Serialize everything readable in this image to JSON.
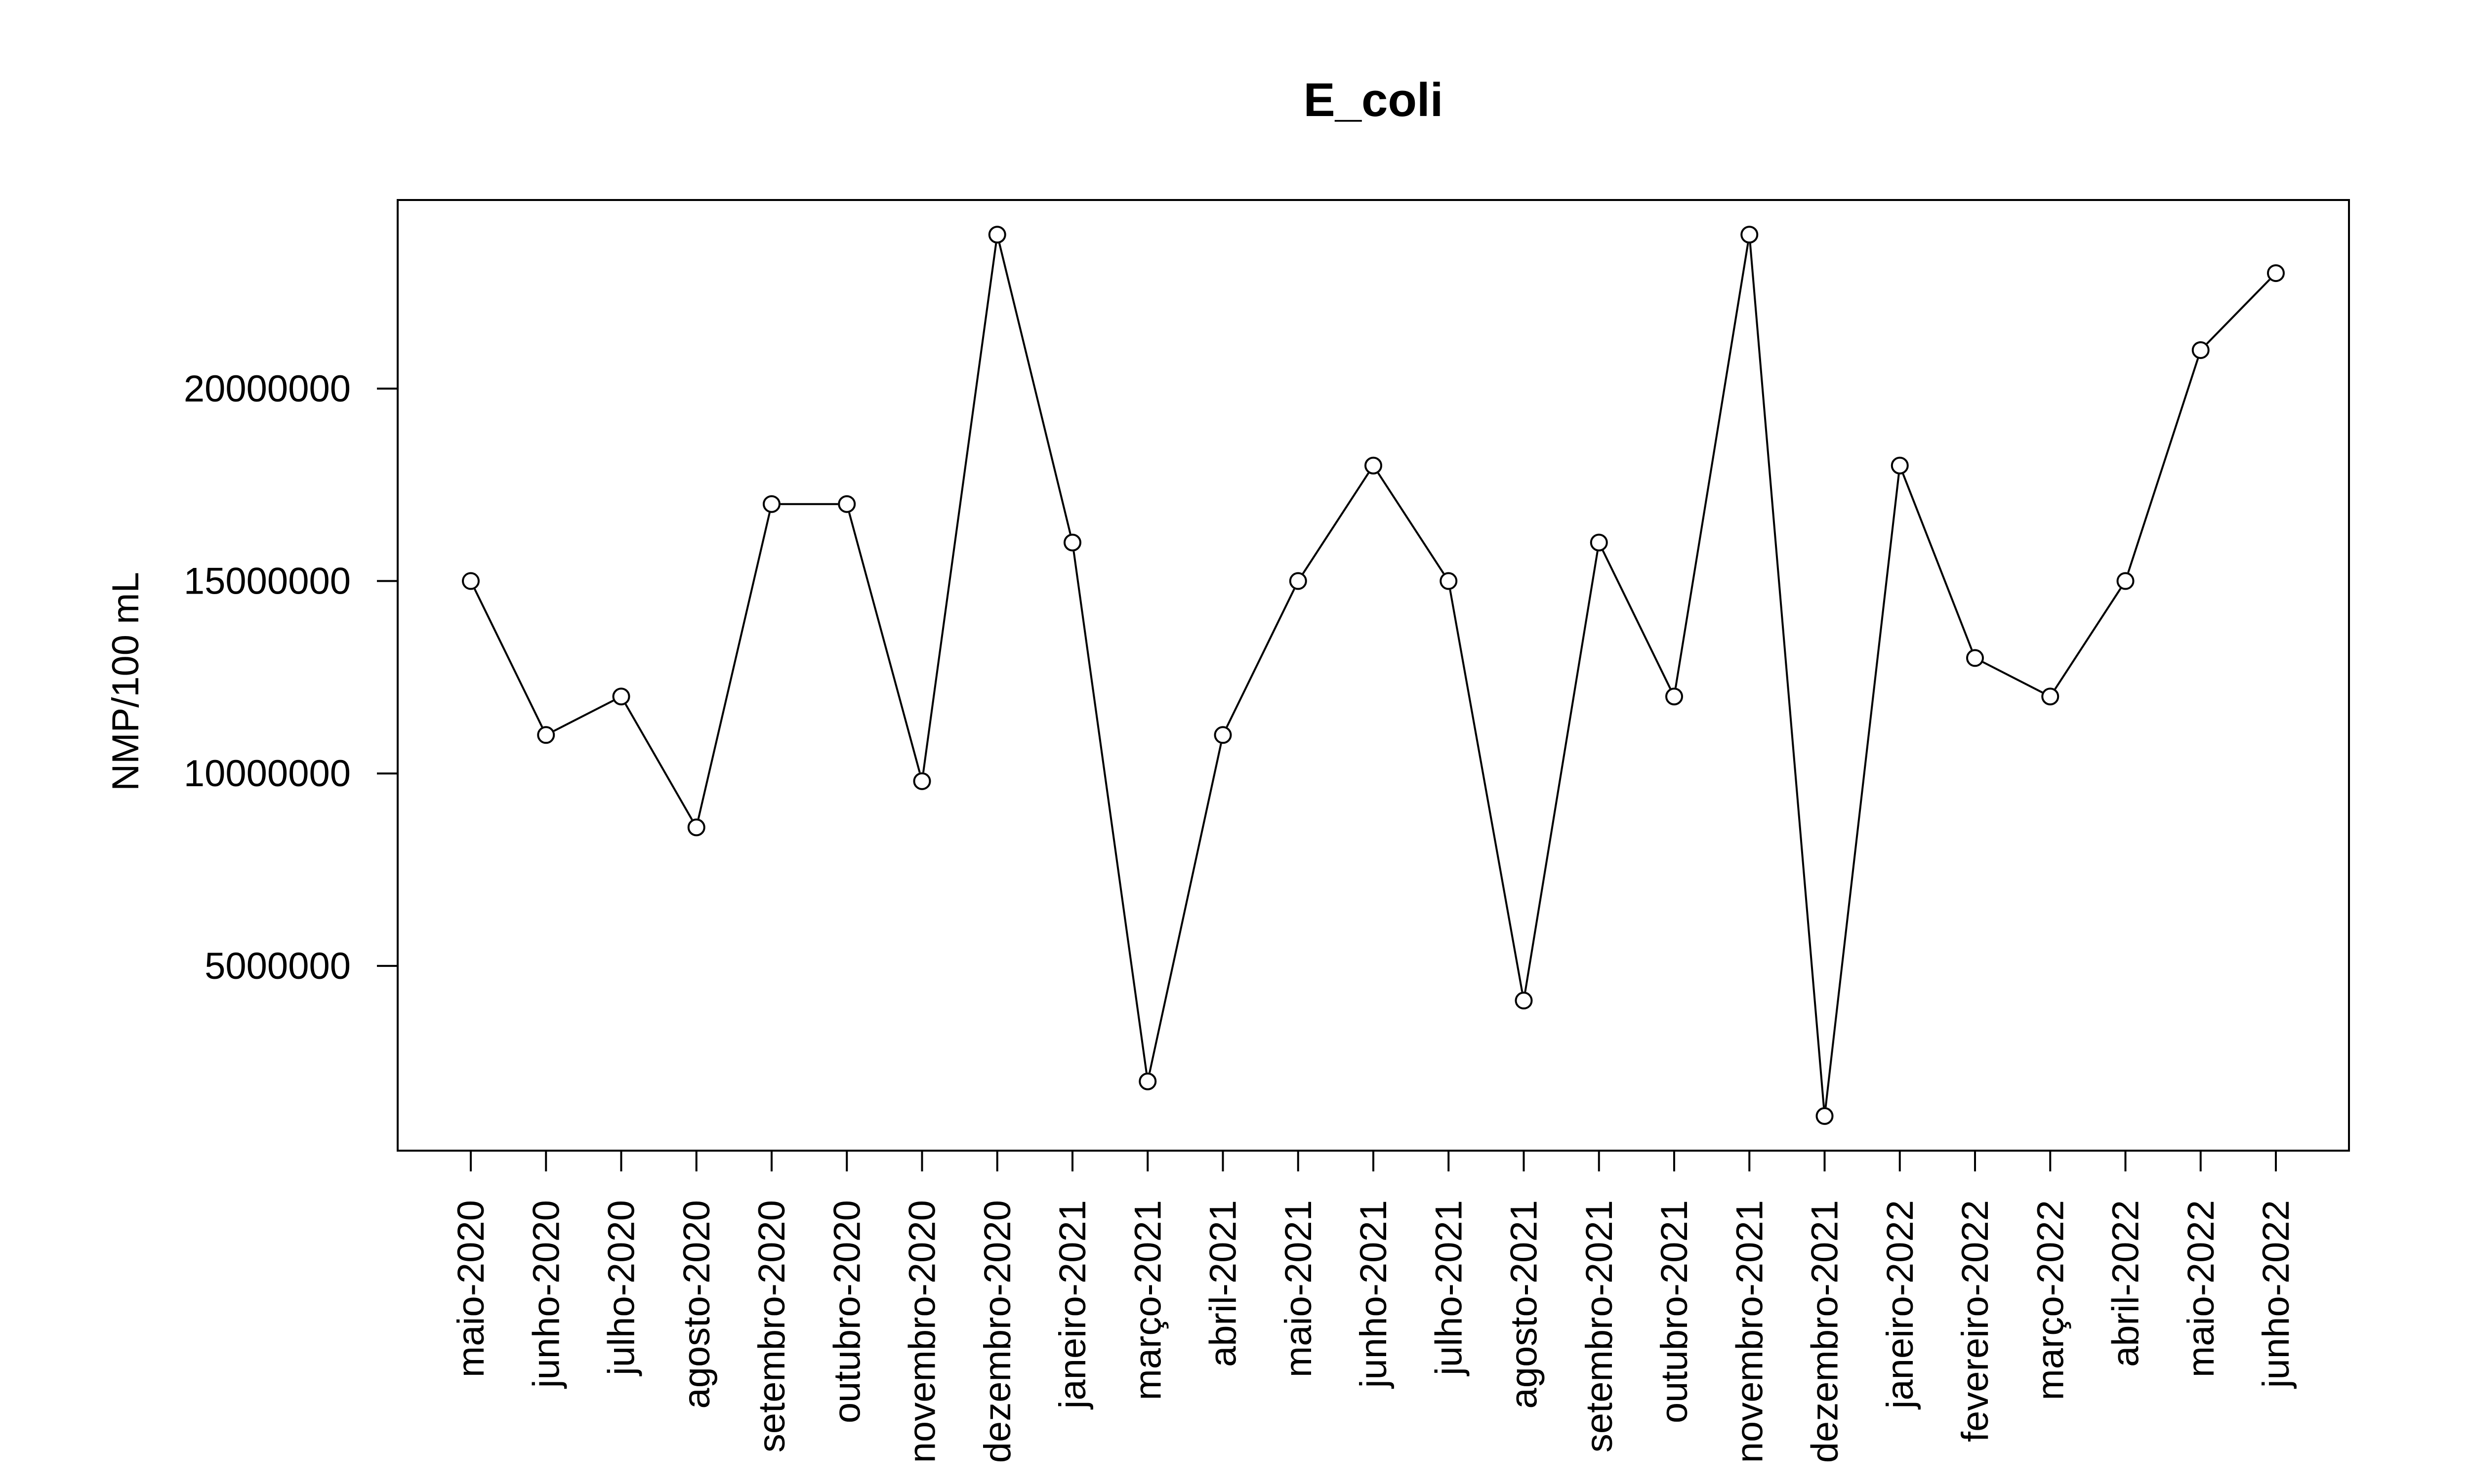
{
  "chart_data": {
    "type": "line",
    "title": "E_coli",
    "xlabel": "",
    "ylabel": "NMP/100 mL",
    "categories": [
      "maio-2020",
      "junho-2020",
      "julho-2020",
      "agosto-2020",
      "setembro-2020",
      "outubro-2020",
      "novembro-2020",
      "dezembro-2020",
      "janeiro-2021",
      "março-2021",
      "abril-2021",
      "maio-2021",
      "junho-2021",
      "julho-2021",
      "agosto-2021",
      "setembro-2021",
      "outubro-2021",
      "novembro-2021",
      "dezembro-2021",
      "janeiro-2022",
      "fevereiro-2022",
      "março-2022",
      "abril-2022",
      "maio-2022",
      "junho-2022"
    ],
    "values": [
      15000000,
      11000000,
      12000000,
      8600000,
      17000000,
      17000000,
      9800000,
      24000000,
      16000000,
      2000000,
      11000000,
      15000000,
      18000000,
      15000000,
      4100000,
      16000000,
      12000000,
      24000000,
      1100000,
      18000000,
      13000000,
      12000000,
      15000000,
      21000000,
      23000000
    ],
    "yticks": [
      5000000,
      10000000,
      15000000,
      20000000
    ],
    "ytick_labels": [
      "5000000",
      "10000000",
      "15000000",
      "20000000"
    ],
    "ylim": [
      200000,
      24900000
    ],
    "grid": false,
    "legend": "none",
    "colors": {
      "line": "#000000",
      "marker": "#000000",
      "background": "#ffffff"
    }
  }
}
